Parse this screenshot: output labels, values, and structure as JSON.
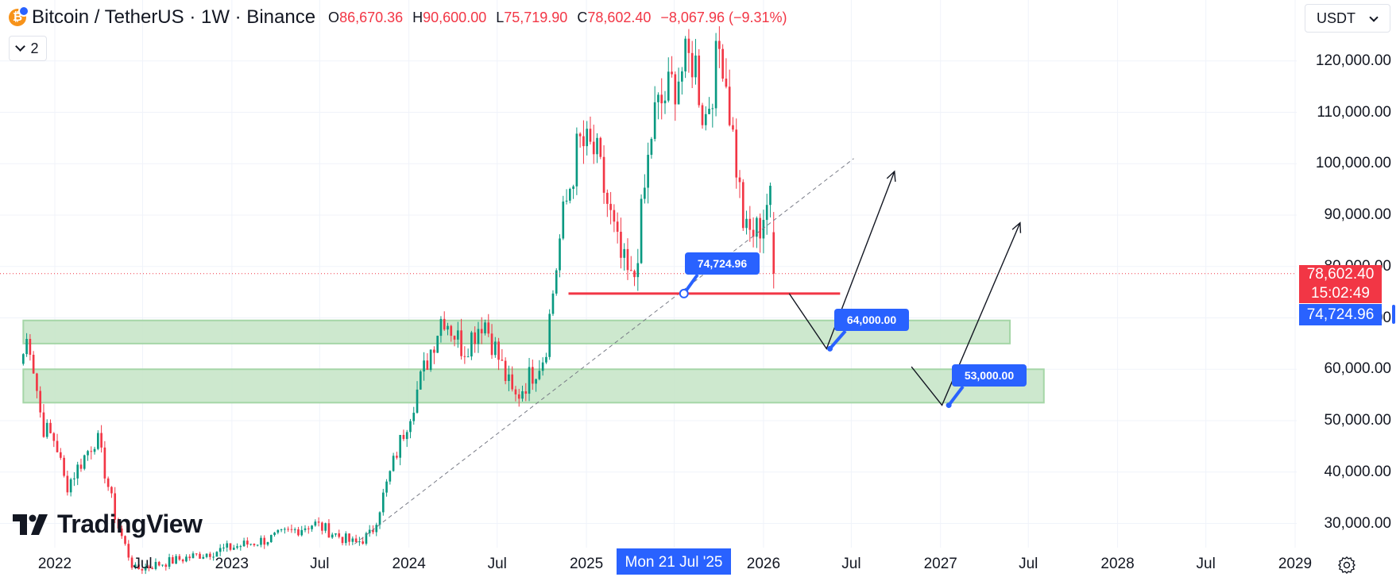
{
  "header": {
    "symbol": "Bitcoin / TetherUS · 1W · Binance",
    "open_label": "O",
    "open": "86,670.36",
    "high_label": "H",
    "high": "90,600.00",
    "low_label": "L",
    "low": "75,719.90",
    "close_label": "C",
    "close": "78,602.40",
    "change": "−8,067.96 (−9.31%)",
    "collapse_count": "2",
    "currency": "USDT"
  },
  "price_labels": {
    "last_price": "78,602.40",
    "countdown": "15:02:49",
    "marker_price": "74,724.96"
  },
  "x_axis_highlight": "Mon 21 Jul '25",
  "callouts": [
    {
      "id": "trendline-touch",
      "text": "74,724.96"
    },
    {
      "id": "target-1",
      "text": "64,000.00"
    },
    {
      "id": "target-2",
      "text": "53,000.00"
    }
  ],
  "branding": {
    "wordmark": "TradingView"
  },
  "chart_data": {
    "type": "candlestick",
    "title": "Bitcoin / TetherUS · 1W · Binance",
    "interval": "1W",
    "y_axis": {
      "ticks": [
        30000,
        40000,
        50000,
        60000,
        70000,
        80000,
        90000,
        100000,
        110000,
        120000
      ],
      "tick_labels": [
        "30,000.00",
        "40,000.00",
        "50,000.00",
        "60,000.00",
        "70,000.00",
        "80,000.00",
        "90,000.00",
        "100,000.00",
        "110,000.00",
        "120,000.00"
      ],
      "range": [
        26000,
        127000
      ]
    },
    "x_axis": {
      "ticks": [
        "2022",
        "Jul",
        "2023",
        "Jul",
        "2024",
        "Jul",
        "2025",
        "Jul",
        "2026",
        "Jul",
        "2027",
        "Jul",
        "2028",
        "Jul",
        "2029"
      ],
      "tick_dates": [
        "2022-01-01",
        "2022-07-01",
        "2023-01-01",
        "2023-07-01",
        "2024-01-01",
        "2024-07-01",
        "2025-01-01",
        "2025-07-01",
        "2026-01-01",
        "2026-07-01",
        "2027-01-01",
        "2027-07-01",
        "2028-01-01",
        "2028-07-01",
        "2029-01-01"
      ],
      "range": [
        "2021-10-28",
        "2029-04-15"
      ]
    },
    "price_path": [
      [
        "2021-10-28",
        63000
      ],
      [
        "2021-11-08",
        67000
      ],
      [
        "2021-12-06",
        49000
      ],
      [
        "2022-01-03",
        46000
      ],
      [
        "2022-01-24",
        37000
      ],
      [
        "2022-03-28",
        47000
      ],
      [
        "2022-05-09",
        30000
      ],
      [
        "2022-06-13",
        21000
      ],
      [
        "2023-03-20",
        27000
      ],
      [
        "2023-06-19",
        30000
      ],
      [
        "2023-09-11",
        26000
      ],
      [
        "2023-10-16",
        28000
      ],
      [
        "2023-12-04",
        43000
      ],
      [
        "2024-03-11",
        71000
      ],
      [
        "2024-04-22",
        64000
      ],
      [
        "2024-06-03",
        70000
      ],
      [
        "2024-08-05",
        54000
      ],
      [
        "2024-10-07",
        63000
      ],
      [
        "2024-11-11",
        88000
      ],
      [
        "2024-12-16",
        104000
      ],
      [
        "2025-01-20",
        102000
      ],
      [
        "2025-03-10",
        82000
      ],
      [
        "2025-04-07",
        76000
      ],
      [
        "2025-05-19",
        109000
      ],
      [
        "2025-07-14",
        118000
      ],
      [
        "2025-08-11",
        121000
      ],
      [
        "2025-09-01",
        108000
      ],
      [
        "2025-10-06",
        124000
      ],
      [
        "2025-11-03",
        102000
      ],
      [
        "2025-11-24",
        86000
      ],
      [
        "2025-12-22",
        87000
      ],
      [
        "2026-01-12",
        94000
      ],
      [
        "2026-01-26",
        86670
      ]
    ],
    "last_candle": {
      "open": 86670.36,
      "high": 90600.0,
      "low": 75719.9,
      "close": 78602.4
    },
    "annotations": {
      "support_line": {
        "price": 74724.96,
        "from": "2024-11-25",
        "to": "2026-06-08",
        "color": "#f23645"
      },
      "zones": [
        {
          "from_price": 65000,
          "to_price": 69500,
          "from": "2021-10-28",
          "to": "2027-05-24",
          "color": "#c8e6c9"
        },
        {
          "from_price": 53500,
          "to_price": 60000,
          "from": "2021-10-28",
          "to": "2027-08-02"
        }
      ],
      "trendline": {
        "from": [
          "2023-09-11",
          26000
        ],
        "to": [
          "2026-07-06",
          101000
        ],
        "style": "dashed"
      },
      "scenario_paths": [
        [
          [
            "2026-02-23",
            74724.96
          ],
          [
            "2026-05-11",
            64000
          ],
          [
            "2026-09-28",
            98500
          ]
        ],
        [
          [
            "2026-11-02",
            60500
          ],
          [
            "2027-01-04",
            53000
          ],
          [
            "2027-06-14",
            88500
          ]
        ]
      ],
      "target_points": [
        {
          "date": "2025-07-21",
          "price": 74724.96
        },
        {
          "date": "2026-05-18",
          "price": 64000
        },
        {
          "date": "2027-01-18",
          "price": 53000
        }
      ]
    },
    "grid": true,
    "colors": {
      "up": "#089981",
      "down": "#f23645",
      "accent": "#2962ff",
      "zone": "#c8e6c9"
    }
  }
}
